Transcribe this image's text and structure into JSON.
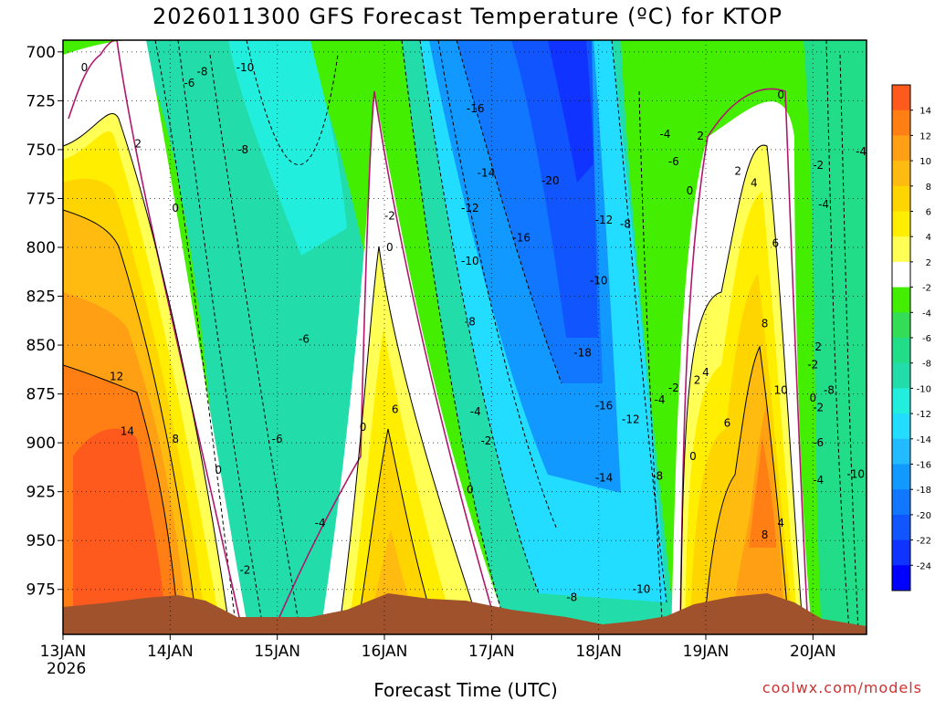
{
  "chart_data": {
    "type": "heatmap",
    "title": "2026011300 GFS Forecast Temperature (ºC) for KTOP",
    "xlabel": "Forecast Time (UTC)",
    "ylabel": "",
    "credit": "coolwx.com/models",
    "y_ticks": [
      "700",
      "725",
      "750",
      "775",
      "800",
      "825",
      "850",
      "875",
      "900",
      "925",
      "950",
      "975"
    ],
    "y_values": [
      700,
      725,
      750,
      775,
      800,
      825,
      850,
      875,
      900,
      925,
      950,
      975
    ],
    "ylim": [
      694,
      998
    ],
    "x_ticks": [
      "13JAN",
      "14JAN",
      "15JAN",
      "16JAN",
      "17JAN",
      "18JAN",
      "19JAN",
      "20JAN"
    ],
    "x_year": "2026",
    "x_values": [
      0,
      1,
      2,
      3,
      4,
      5,
      6,
      7
    ],
    "xlim": [
      0,
      7.5
    ],
    "colorbar": {
      "labels": [
        "14",
        "12",
        "10",
        "8",
        "6",
        "4",
        "2",
        "-2",
        "-4",
        "-6",
        "-8",
        "-10",
        "-12",
        "-14",
        "-16",
        "-18",
        "-20",
        "-22",
        "-24"
      ],
      "colors": [
        "#ff5a1e",
        "#ff7f14",
        "#ff9f14",
        "#ffbb0f",
        "#ffd500",
        "#ffee00",
        "#ffff55",
        "#ffffff",
        "#44ee00",
        "#33dd55",
        "#22dd88",
        "#22ddaa",
        "#22eedd",
        "#22ddff",
        "#22bbff",
        "#1199ff",
        "#1177ff",
        "#1155ff",
        "#1133ff",
        "#0000ff"
      ]
    },
    "contour_labels": [
      {
        "text": "0",
        "t": 0.2,
        "p": 708
      },
      {
        "text": "2",
        "t": 0.7,
        "p": 747
      },
      {
        "text": "0",
        "t": 1.05,
        "p": 780
      },
      {
        "text": "-6",
        "t": 1.18,
        "p": 716
      },
      {
        "text": "-8",
        "t": 1.3,
        "p": 710
      },
      {
        "text": "-10",
        "t": 1.7,
        "p": 708
      },
      {
        "text": "-8",
        "t": 1.68,
        "p": 750
      },
      {
        "text": "12",
        "t": 0.5,
        "p": 866
      },
      {
        "text": "14",
        "t": 0.6,
        "p": 894
      },
      {
        "text": "8",
        "t": 1.05,
        "p": 898
      },
      {
        "text": "0",
        "t": 1.45,
        "p": 914
      },
      {
        "text": "-2",
        "t": 1.7,
        "p": 965
      },
      {
        "text": "-4",
        "t": 2.4,
        "p": 941
      },
      {
        "text": "-6",
        "t": 2.0,
        "p": 898
      },
      {
        "text": "-6",
        "t": 2.25,
        "p": 847
      },
      {
        "text": "-2",
        "t": 3.05,
        "p": 784
      },
      {
        "text": "0",
        "t": 3.05,
        "p": 800
      },
      {
        "text": "6",
        "t": 3.1,
        "p": 883
      },
      {
        "text": "0",
        "t": 2.8,
        "p": 892
      },
      {
        "text": "-16",
        "t": 3.85,
        "p": 729
      },
      {
        "text": "-14",
        "t": 3.95,
        "p": 762
      },
      {
        "text": "-12",
        "t": 3.8,
        "p": 780
      },
      {
        "text": "-10",
        "t": 3.8,
        "p": 807
      },
      {
        "text": "-8",
        "t": 3.8,
        "p": 838
      },
      {
        "text": "-4",
        "t": 3.85,
        "p": 884
      },
      {
        "text": "-2",
        "t": 3.95,
        "p": 899
      },
      {
        "text": "0",
        "t": 3.8,
        "p": 924
      },
      {
        "text": "-20",
        "t": 4.55,
        "p": 766
      },
      {
        "text": "-16",
        "t": 4.28,
        "p": 795
      },
      {
        "text": "-12",
        "t": 5.05,
        "p": 786
      },
      {
        "text": "-8",
        "t": 5.25,
        "p": 788
      },
      {
        "text": "-10",
        "t": 5.0,
        "p": 817
      },
      {
        "text": "-18",
        "t": 4.85,
        "p": 854
      },
      {
        "text": "-16",
        "t": 5.05,
        "p": 881
      },
      {
        "text": "-12",
        "t": 5.3,
        "p": 888
      },
      {
        "text": "-14",
        "t": 5.05,
        "p": 918
      },
      {
        "text": "-8",
        "t": 4.75,
        "p": 979
      },
      {
        "text": "-10",
        "t": 5.4,
        "p": 975
      },
      {
        "text": "-8",
        "t": 5.55,
        "p": 917
      },
      {
        "text": "-4",
        "t": 5.62,
        "p": 742
      },
      {
        "text": "-6",
        "t": 5.7,
        "p": 756
      },
      {
        "text": "2",
        "t": 5.95,
        "p": 743
      },
      {
        "text": "0",
        "t": 5.85,
        "p": 771
      },
      {
        "text": "-2",
        "t": 5.7,
        "p": 872
      },
      {
        "text": "-4",
        "t": 5.57,
        "p": 878
      },
      {
        "text": "2",
        "t": 5.92,
        "p": 868
      },
      {
        "text": "4",
        "t": 6.0,
        "p": 864
      },
      {
        "text": "0",
        "t": 5.88,
        "p": 907
      },
      {
        "text": "6",
        "t": 6.2,
        "p": 890
      },
      {
        "text": "2",
        "t": 6.3,
        "p": 761
      },
      {
        "text": "4",
        "t": 6.45,
        "p": 767
      },
      {
        "text": "6",
        "t": 6.65,
        "p": 798
      },
      {
        "text": "8",
        "t": 6.55,
        "p": 839
      },
      {
        "text": "10",
        "t": 6.7,
        "p": 873
      },
      {
        "text": "8",
        "t": 6.55,
        "p": 947
      },
      {
        "text": "4",
        "t": 6.7,
        "p": 941
      },
      {
        "text": "0",
        "t": 6.7,
        "p": 722
      },
      {
        "text": "-2",
        "t": 7.05,
        "p": 758
      },
      {
        "text": "-4",
        "t": 7.1,
        "p": 778
      },
      {
        "text": "-4",
        "t": 7.45,
        "p": 751
      },
      {
        "text": "-2",
        "t": 7.0,
        "p": 860
      },
      {
        "text": "2",
        "t": 7.05,
        "p": 851
      },
      {
        "text": "0",
        "t": 7.0,
        "p": 877
      },
      {
        "text": "-2",
        "t": 7.05,
        "p": 882
      },
      {
        "text": "-8",
        "t": 7.15,
        "p": 873
      },
      {
        "text": "-6",
        "t": 7.05,
        "p": 900
      },
      {
        "text": "-4",
        "t": 7.05,
        "p": 919
      },
      {
        "text": "-10",
        "t": 7.4,
        "p": 916
      }
    ]
  }
}
